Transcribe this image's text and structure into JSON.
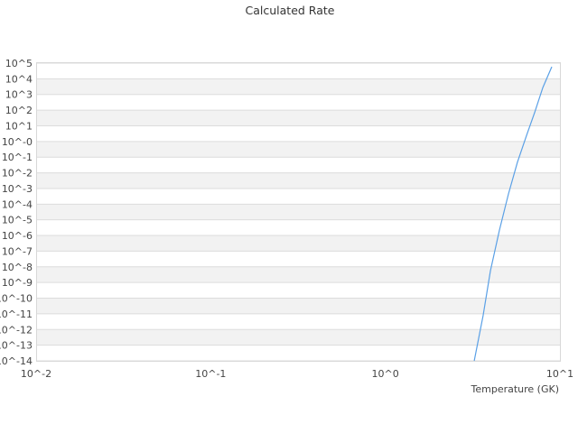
{
  "chart_data": {
    "type": "line",
    "title": "Calculated Rate",
    "xlabel": "Temperature (GK)",
    "ylabel": "",
    "x_scale": "log",
    "y_scale": "log",
    "xlim": [
      0.01,
      10
    ],
    "ylim": [
      1e-14,
      100000.0
    ],
    "x_tick_labels": [
      "10^-2",
      "10^-1",
      "10^0",
      "10^1"
    ],
    "y_tick_labels": [
      "10^5",
      "10^4",
      "10^3",
      "10^2",
      "10^1",
      "10^-0",
      "10^-1",
      "10^-2",
      "10^-3",
      "10^-4",
      "10^-5",
      "10^-6",
      "10^-7",
      "10^-8",
      "10^-9",
      "10^-10",
      "10^-11",
      "10^-12",
      "10^-13",
      "10^-14"
    ],
    "grid": true,
    "alternating_bands": true,
    "legend": "none",
    "series_color": "#5aa0e6",
    "series": [
      {
        "x": [
          3.23,
          3.63,
          4.0,
          4.5,
          5.07,
          5.71,
          6.44,
          7.16,
          7.98,
          8.98
        ],
        "y": [
          1e-14,
          7.6e-12,
          5.8e-09,
          2.2e-06,
          0.00045,
          0.047,
          2.5,
          68,
          2800,
          59000
        ]
      }
    ]
  }
}
